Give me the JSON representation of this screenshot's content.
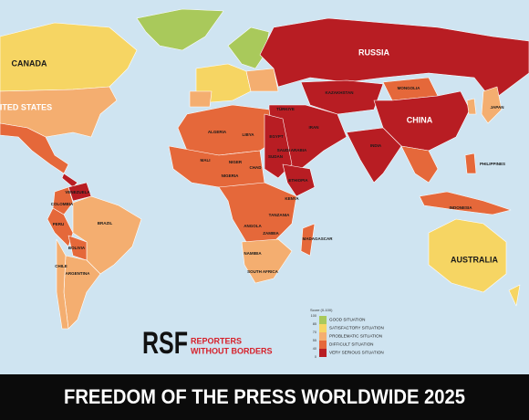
{
  "map": {
    "title": "FREEDOM OF THE PRESS WORLDWIDE 2025",
    "logo": {
      "mark": "RSF",
      "line1": "REPORTERS",
      "line2": "WITHOUT BORDERS"
    },
    "legend": {
      "title": "Score (0-100)",
      "ticks": [
        100,
        85,
        70,
        55,
        40,
        0
      ],
      "categories": [
        {
          "label": "GOOD SITUATION",
          "color": "#a9c95b"
        },
        {
          "label": "SATISFACTORY SITUATION",
          "color": "#f6d563"
        },
        {
          "label": "PROBLEMATIC SITUATION",
          "color": "#f4ae70"
        },
        {
          "label": "DIFFICULT SITUATION",
          "color": "#e5683a"
        },
        {
          "label": "VERY SERIOUS SITUATION",
          "color": "#b81d23"
        }
      ]
    },
    "country_labels": [
      "CANADA",
      "UNITED STATES",
      "RUSSIA",
      "KAZAKHSTAN",
      "MONGOLIA",
      "CHINA",
      "INDIA",
      "BRAZIL",
      "ARGENTINA",
      "AUSTRALIA",
      "VENEZUELA",
      "COLOMBIA",
      "PERU",
      "BOLIVIA",
      "CHILE",
      "ALGERIA",
      "LIBYA",
      "EGYPT",
      "SUDAN",
      "MALI",
      "NIGER",
      "CHAD",
      "NIGERIA",
      "ETHIOPIA",
      "KENYA",
      "TANZANIA",
      "ANGOLA",
      "ZAMBIA",
      "NAMIBIA",
      "SOUTH AFRICA",
      "MADAGASCAR",
      "INDONESIA",
      "PHILIPPINES",
      "JAPAN",
      "IRAN",
      "SAUDI ARABIA",
      "TÜRKIYE"
    ]
  }
}
